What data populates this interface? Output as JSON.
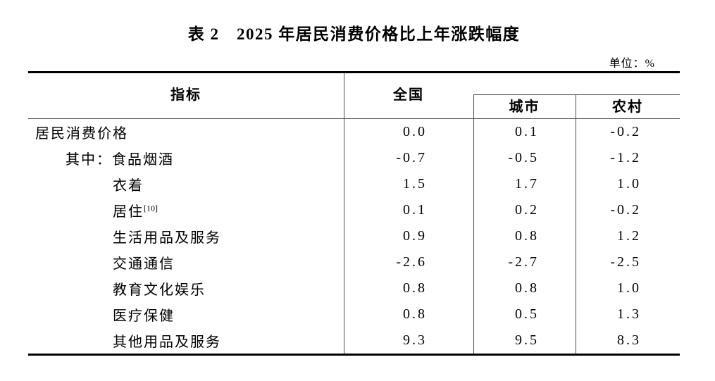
{
  "title": "表 2　2025 年居民消费价格比上年涨跌幅度",
  "unit_label": "单位：%",
  "table": {
    "columns": {
      "indicator": "指标",
      "national": "全国",
      "urban": "城市",
      "rural": "农村"
    },
    "rows": [
      {
        "label": "居民消费价格",
        "sup": "",
        "indent": 0,
        "national": "0.0",
        "urban": "0.1",
        "rural": "-0.2"
      },
      {
        "label": "其中：食品烟酒",
        "sup": "",
        "indent": 1,
        "national": "-0.7",
        "urban": "-0.5",
        "rural": "-1.2"
      },
      {
        "label": "衣着",
        "sup": "",
        "indent": 2,
        "national": "1.5",
        "urban": "1.7",
        "rural": "1.0"
      },
      {
        "label": "居住",
        "sup": "[10]",
        "indent": 2,
        "national": "0.1",
        "urban": "0.2",
        "rural": "-0.2"
      },
      {
        "label": "生活用品及服务",
        "sup": "",
        "indent": 2,
        "national": "0.9",
        "urban": "0.8",
        "rural": "1.2"
      },
      {
        "label": "交通通信",
        "sup": "",
        "indent": 2,
        "national": "-2.6",
        "urban": "-2.7",
        "rural": "-2.5"
      },
      {
        "label": "教育文化娱乐",
        "sup": "",
        "indent": 2,
        "national": "0.8",
        "urban": "0.8",
        "rural": "1.0"
      },
      {
        "label": "医疗保健",
        "sup": "",
        "indent": 2,
        "national": "0.8",
        "urban": "0.5",
        "rural": "1.3"
      },
      {
        "label": "其他用品及服务",
        "sup": "",
        "indent": 2,
        "national": "9.3",
        "urban": "9.5",
        "rural": "8.3"
      }
    ]
  },
  "chart_data": {
    "type": "table",
    "title": "表 2　2025 年居民消费价格比上年涨跌幅度",
    "unit": "%",
    "columns": [
      "指标",
      "全国",
      "城市",
      "农村"
    ],
    "rows": [
      [
        "居民消费价格",
        0.0,
        0.1,
        -0.2
      ],
      [
        "其中：食品烟酒",
        -0.7,
        -0.5,
        -1.2
      ],
      [
        "衣着",
        1.5,
        1.7,
        1.0
      ],
      [
        "居住[10]",
        0.1,
        0.2,
        -0.2
      ],
      [
        "生活用品及服务",
        0.9,
        0.8,
        1.2
      ],
      [
        "交通通信",
        -2.6,
        -2.7,
        -2.5
      ],
      [
        "教育文化娱乐",
        0.8,
        0.8,
        1.0
      ],
      [
        "医疗保健",
        0.8,
        0.5,
        1.3
      ],
      [
        "其他用品及服务",
        9.3,
        9.5,
        8.3
      ]
    ]
  },
  "colors": {
    "text": "#000000",
    "thick_line": "#000000",
    "thin_line": "#4d4d4d",
    "background": "#ffffff"
  }
}
